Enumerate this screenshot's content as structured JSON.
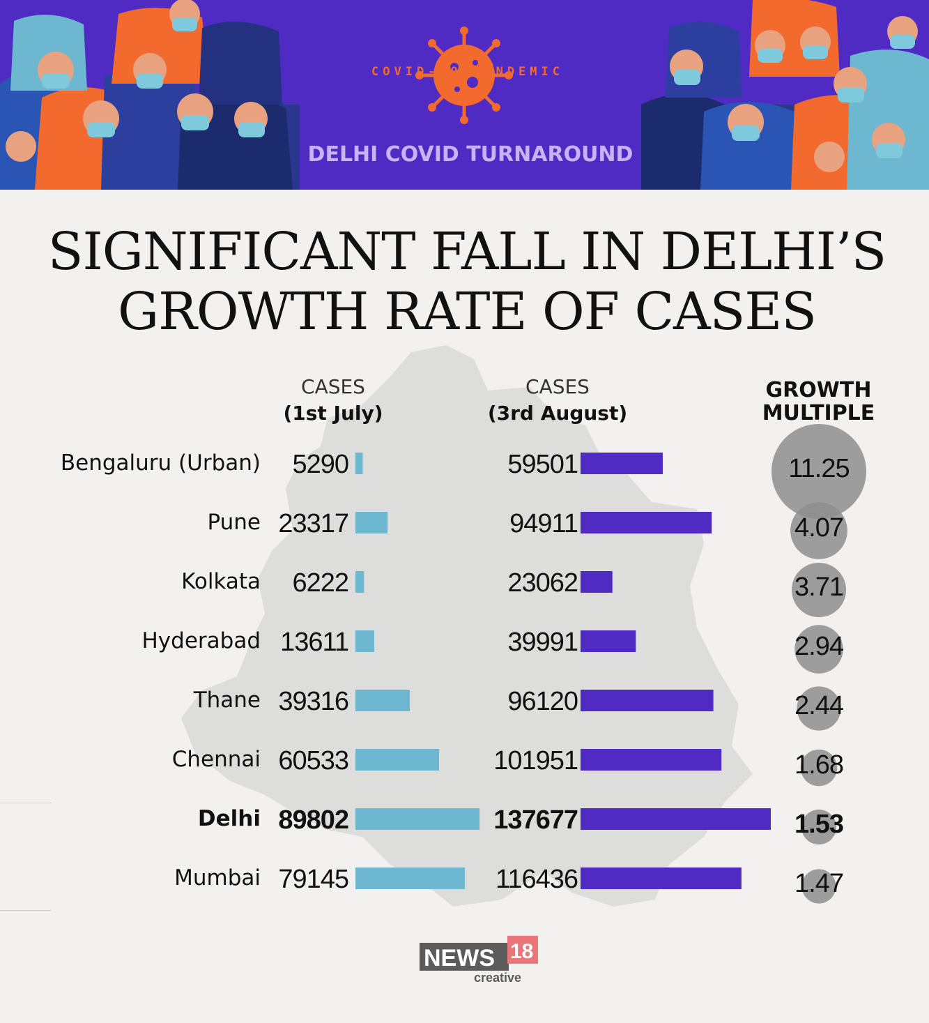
{
  "banner": {
    "kicker": "COVID-19 PANDEMIC",
    "title": "DELHI COVID TURNAROUND",
    "background": "#4f2bc4"
  },
  "headline": "SIGNIFICANT FALL IN DELHI’S GROWTH RATE OF CASES",
  "columns": {
    "july": {
      "line1": "CASES",
      "line2": "(1st July)"
    },
    "august": {
      "line1": "CASES",
      "line2": "(3rd August)"
    },
    "growth": {
      "line1": "GROWTH",
      "line2": "MULTIPLE"
    }
  },
  "chart_data": {
    "type": "bar",
    "categories": [
      "Bengaluru (Urban)",
      "Pune",
      "Kolkata",
      "Hyderabad",
      "Thane",
      "Chennai",
      "Delhi",
      "Mumbai"
    ],
    "series": [
      {
        "values": [
          5290,
          23317,
          6222,
          13611,
          39316,
          60533,
          89802,
          79145
        ],
        "color": "#6db8d0"
      },
      {
        "values": [
          59501,
          94911,
          23062,
          39991,
          96120,
          101951,
          137677,
          116436
        ],
        "color": "#4f2bc4"
      }
    ],
    "growth_multiple": [
      11.25,
      4.07,
      3.71,
      2.94,
      2.44,
      1.68,
      1.53,
      1.47
    ],
    "highlight": "Delhi",
    "bubble_color": "#8e8e8e"
  },
  "logo": {
    "brand": "NEWS",
    "number": "18",
    "sub": "creative"
  }
}
